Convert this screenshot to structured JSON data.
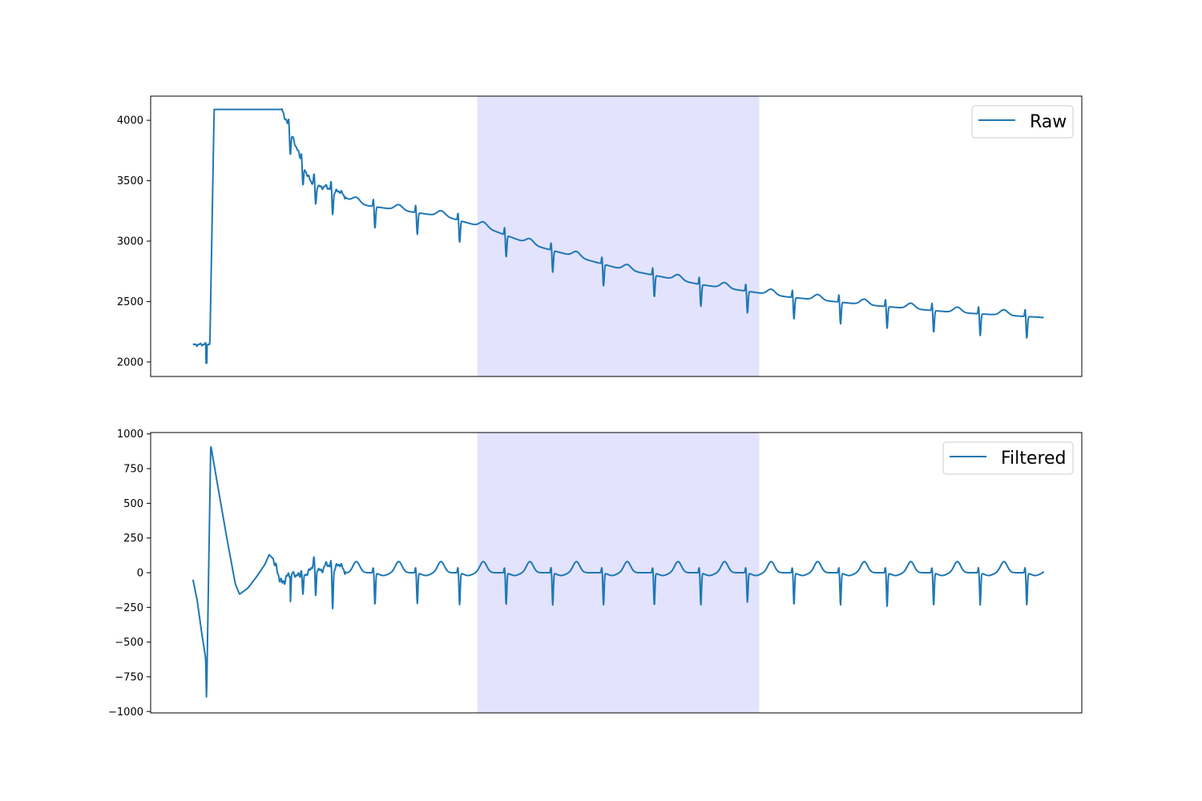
{
  "colors": {
    "line": "#1f77b4",
    "highlight": "#e3e3fd",
    "axes": "#000000",
    "legend_border": "#cccccc"
  },
  "chart_data": [
    {
      "type": "line",
      "title": "",
      "xlabel": "",
      "ylabel": "",
      "x_axis_visible": false,
      "grid": false,
      "legend_position": "upper-right",
      "ylim": [
        1880,
        4200
      ],
      "yticks": [
        2000,
        2500,
        3000,
        3500,
        4000
      ],
      "ytick_labels": [
        "2000",
        "2500",
        "3000",
        "3500",
        "4000"
      ],
      "xlim": [
        -0.5,
        10.5
      ],
      "highlight_span": [
        3.36,
        6.69
      ],
      "series": [
        {
          "name": "Raw",
          "baseline": [
            [
              0,
              2140
            ],
            [
              0.2,
              2150
            ],
            [
              0.25,
              4090
            ],
            [
              1.05,
              4090
            ],
            [
              1.4,
              3450
            ],
            [
              2.0,
              3300
            ],
            [
              3.0,
              3200
            ],
            [
              3.5,
              3100
            ],
            [
              4.0,
              2970
            ],
            [
              5.0,
              2780
            ],
            [
              6.0,
              2640
            ],
            [
              7.0,
              2540
            ],
            [
              8.0,
              2470
            ],
            [
              9.0,
              2410
            ],
            [
              10.0,
              2370
            ],
            [
              10.05,
              2360
            ]
          ],
          "beats": [
            1.15,
            1.3,
            1.45,
            1.65,
            2.15,
            2.65,
            3.15,
            3.7,
            4.25,
            4.85,
            5.45,
            6.0,
            6.55,
            7.1,
            7.65,
            8.2,
            8.75,
            9.3,
            9.85
          ]
        }
      ]
    },
    {
      "type": "line",
      "title": "",
      "xlabel": "",
      "ylabel": "",
      "x_axis_visible": false,
      "grid": false,
      "legend_position": "upper-right",
      "ylim": [
        -1010,
        1010
      ],
      "yticks": [
        -1000,
        -750,
        -500,
        -250,
        0,
        250,
        500,
        750,
        1000
      ],
      "ytick_labels": [
        "−1000",
        "−750",
        "−500",
        "−250",
        "0",
        "250",
        "500",
        "750",
        "1000"
      ],
      "xlim": [
        -0.5,
        10.5
      ],
      "highlight_span": [
        3.36,
        6.69
      ],
      "series": [
        {
          "name": "Filtered",
          "transient": [
            [
              0,
              -50
            ],
            [
              0.05,
              -200
            ],
            [
              0.1,
              -420
            ],
            [
              0.15,
              -620
            ],
            [
              0.16,
              -920
            ],
            [
              0.21,
              920
            ],
            [
              0.3,
              600
            ],
            [
              0.4,
              250
            ],
            [
              0.5,
              -80
            ],
            [
              0.55,
              -155
            ],
            [
              0.65,
              -110
            ],
            [
              0.75,
              -30
            ],
            [
              0.85,
              60
            ],
            [
              0.9,
              130
            ],
            [
              0.95,
              100
            ],
            [
              1.0,
              0
            ],
            [
              1.05,
              -80
            ],
            [
              1.15,
              0
            ]
          ],
          "beats": [
            1.15,
            1.3,
            1.45,
            1.65,
            2.15,
            2.65,
            3.15,
            3.7,
            4.25,
            4.85,
            5.45,
            6.0,
            6.55,
            7.1,
            7.65,
            8.2,
            8.75,
            9.3,
            9.85
          ],
          "beat_depths": [
            -200,
            -150,
            -230,
            -270,
            -230,
            -220,
            -230,
            -230,
            -230,
            -230,
            -235,
            -230,
            -210,
            -230,
            -230,
            -240,
            -235,
            -230,
            -230
          ],
          "t_wave_height": 80
        }
      ]
    }
  ]
}
